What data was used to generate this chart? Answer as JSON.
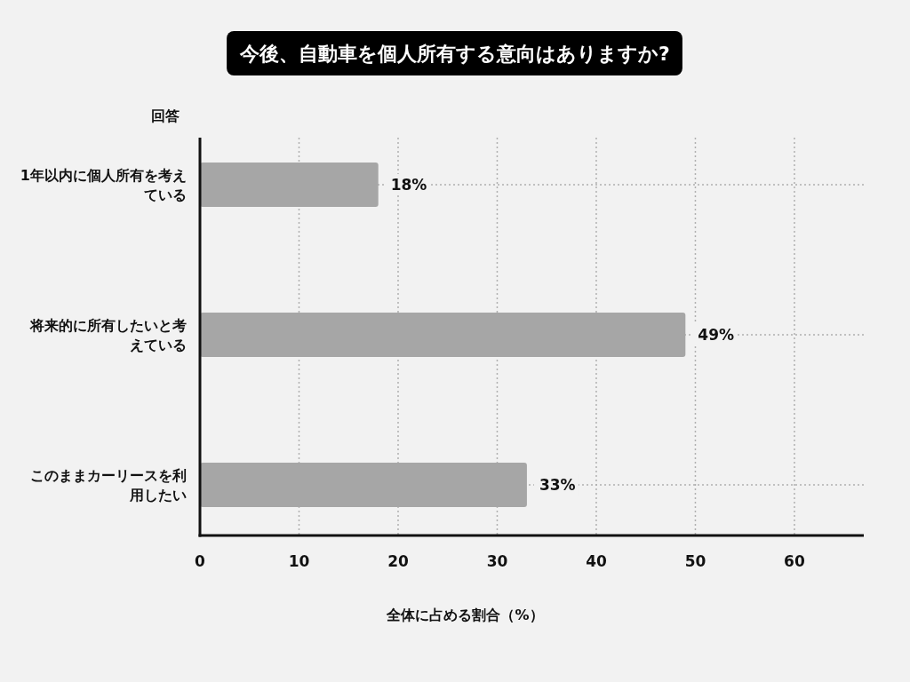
{
  "chart_data": {
    "type": "bar",
    "orientation": "horizontal",
    "title": "今後、自動車を個人所有する意向はありますか?",
    "ylabel": "回答",
    "xlabel": "全体に占める割合（%）",
    "categories": [
      "1年以内に個人所有を考えている",
      "将来的に所有したいと考えている",
      "このままカーリースを利用したい"
    ],
    "values": [
      18,
      49,
      33
    ],
    "color": "#a6a6a6",
    "value_labels": [
      "18%",
      "49%",
      "33%"
    ],
    "xlim": [
      0,
      67
    ],
    "xticks": [
      0,
      10,
      20,
      30,
      40,
      50,
      60
    ],
    "grid": true
  }
}
